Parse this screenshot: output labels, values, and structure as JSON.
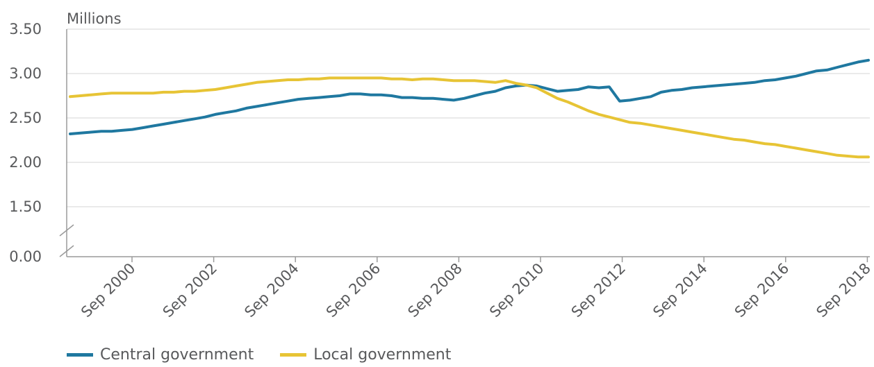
{
  "chart_data": {
    "type": "line",
    "ylabel": "Millions",
    "y_ticks": [
      "0.00",
      "1.50",
      "2.00",
      "2.50",
      "3.00",
      "3.50"
    ],
    "y_axis_break": "between 0.00 and 1.50",
    "x_ticks": [
      "Sep 2000",
      "Sep 2002",
      "Sep 2004",
      "Sep 2006",
      "Sep 2008",
      "Sep 2010",
      "Sep 2012",
      "Sep 2014",
      "Sep 2016",
      "Sep 2018"
    ],
    "x_range": [
      "Sep 1998",
      "Sep 2018"
    ],
    "grid": "horizontal",
    "legend_position": "bottom-left",
    "x_frequency": "quarterly",
    "series": [
      {
        "name": "Central government",
        "color": "#1f78a0",
        "values": [
          2.32,
          2.33,
          2.34,
          2.35,
          2.35,
          2.36,
          2.37,
          2.39,
          2.41,
          2.43,
          2.45,
          2.47,
          2.49,
          2.51,
          2.54,
          2.56,
          2.58,
          2.61,
          2.63,
          2.65,
          2.67,
          2.69,
          2.71,
          2.72,
          2.73,
          2.74,
          2.75,
          2.77,
          2.77,
          2.76,
          2.76,
          2.75,
          2.73,
          2.73,
          2.72,
          2.72,
          2.71,
          2.7,
          2.72,
          2.75,
          2.78,
          2.8,
          2.84,
          2.86,
          2.87,
          2.86,
          2.83,
          2.8,
          2.81,
          2.82,
          2.85,
          2.84,
          2.85,
          2.69,
          2.7,
          2.72,
          2.74,
          2.79,
          2.81,
          2.82,
          2.84,
          2.85,
          2.86,
          2.87,
          2.88,
          2.89,
          2.9,
          2.92,
          2.93,
          2.95,
          2.97,
          3.0,
          3.03,
          3.04,
          3.07,
          3.1,
          3.13,
          3.15
        ]
      },
      {
        "name": "Local government",
        "color": "#e7c435",
        "values": [
          2.74,
          2.75,
          2.76,
          2.77,
          2.78,
          2.78,
          2.78,
          2.78,
          2.78,
          2.79,
          2.79,
          2.8,
          2.8,
          2.81,
          2.82,
          2.84,
          2.86,
          2.88,
          2.9,
          2.91,
          2.92,
          2.93,
          2.93,
          2.94,
          2.94,
          2.95,
          2.95,
          2.95,
          2.95,
          2.95,
          2.95,
          2.94,
          2.94,
          2.93,
          2.94,
          2.94,
          2.93,
          2.92,
          2.92,
          2.92,
          2.91,
          2.9,
          2.92,
          2.89,
          2.87,
          2.84,
          2.78,
          2.72,
          2.68,
          2.63,
          2.58,
          2.54,
          2.51,
          2.48,
          2.45,
          2.44,
          2.42,
          2.4,
          2.38,
          2.36,
          2.34,
          2.32,
          2.3,
          2.28,
          2.26,
          2.25,
          2.23,
          2.21,
          2.2,
          2.18,
          2.16,
          2.14,
          2.12,
          2.1,
          2.08,
          2.07,
          2.06,
          2.06
        ]
      }
    ]
  }
}
